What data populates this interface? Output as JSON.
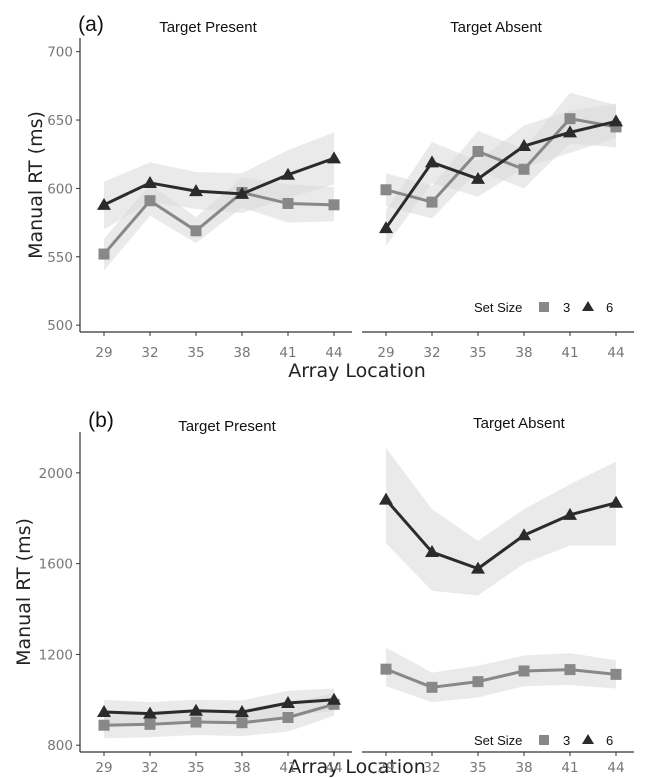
{
  "colors": {
    "set3": "#888888",
    "set6": "#2b2b2b",
    "ribbon": "#d9d9d9",
    "axis": "#333333",
    "tick_text": "#777777"
  },
  "chart_data": [
    {
      "type": "line",
      "panel_label": "(a)",
      "xlabel": "Array Location",
      "ylabel": "Manual RT (ms)",
      "x": [
        29,
        32,
        35,
        38,
        41,
        44
      ],
      "ylim": [
        495,
        710
      ],
      "yticks": [
        500,
        550,
        600,
        650,
        700
      ],
      "grid": false,
      "legend": {
        "title": "Set Size",
        "position": "bottom-right",
        "entries": [
          "3",
          "6"
        ]
      },
      "facets": [
        {
          "title": "Target Present",
          "series": [
            {
              "name": "3",
              "marker": "square",
              "values": [
                552,
                591,
                569,
                597,
                589,
                588
              ],
              "ci_lower": [
                540,
                580,
                560,
                586,
                575,
                576
              ],
              "ci_upper": [
                563,
                603,
                579,
                608,
                603,
                601
              ]
            },
            {
              "name": "6",
              "marker": "triangle",
              "values": [
                588,
                604,
                598,
                596,
                610,
                622
              ],
              "ci_lower": [
                570,
                590,
                585,
                582,
                593,
                603
              ],
              "ci_upper": [
                605,
                619,
                612,
                611,
                628,
                641
              ]
            }
          ]
        },
        {
          "title": "Target Absent",
          "series": [
            {
              "name": "3",
              "marker": "square",
              "values": [
                599,
                590,
                627,
                614,
                651,
                645
              ],
              "ci_lower": [
                587,
                578,
                613,
                600,
                633,
                630
              ],
              "ci_upper": [
                611,
                602,
                642,
                629,
                670,
                661
              ]
            },
            {
              "name": "6",
              "marker": "triangle",
              "values": [
                571,
                619,
                607,
                631,
                641,
                649
              ],
              "ci_lower": [
                558,
                604,
                594,
                615,
                626,
                637
              ],
              "ci_upper": [
                584,
                634,
                620,
                646,
                657,
                662
              ]
            }
          ]
        }
      ]
    },
    {
      "type": "line",
      "panel_label": "(b)",
      "xlabel": "Array Location",
      "ylabel": "Manual RT (ms)",
      "x": [
        29,
        32,
        35,
        38,
        41,
        44
      ],
      "ylim": [
        770,
        2180
      ],
      "yticks": [
        800,
        1200,
        1600,
        2000
      ],
      "grid": false,
      "legend": {
        "title": "Set Size",
        "position": "bottom-right",
        "entries": [
          "3",
          "6"
        ]
      },
      "facets": [
        {
          "title": "Target Present",
          "series": [
            {
              "name": "3",
              "marker": "square",
              "values": [
                888,
                892,
                902,
                899,
                922,
                980
              ],
              "ci_lower": [
                830,
                835,
                845,
                840,
                860,
                930
              ],
              "ci_upper": [
                945,
                950,
                958,
                958,
                985,
                1030
              ]
            },
            {
              "name": "6",
              "marker": "triangle",
              "values": [
                946,
                939,
                952,
                946,
                986,
                1000
              ],
              "ci_lower": [
                895,
                890,
                900,
                895,
                930,
                950
              ],
              "ci_upper": [
                1000,
                990,
                1000,
                997,
                1040,
                1050
              ]
            }
          ]
        },
        {
          "title": "Target Absent",
          "series": [
            {
              "name": "3",
              "marker": "square",
              "values": [
                1135,
                1055,
                1080,
                1127,
                1133,
                1112
              ],
              "ci_lower": [
                1060,
                990,
                1010,
                1060,
                1065,
                1050
              ],
              "ci_upper": [
                1230,
                1120,
                1150,
                1195,
                1205,
                1175
              ]
            },
            {
              "name": "6",
              "marker": "triangle",
              "values": [
                1882,
                1651,
                1578,
                1725,
                1815,
                1868
              ],
              "ci_lower": [
                1690,
                1480,
                1460,
                1600,
                1680,
                1680
              ],
              "ci_upper": [
                2110,
                1840,
                1700,
                1840,
                1950,
                2050
              ]
            }
          ]
        }
      ]
    }
  ]
}
